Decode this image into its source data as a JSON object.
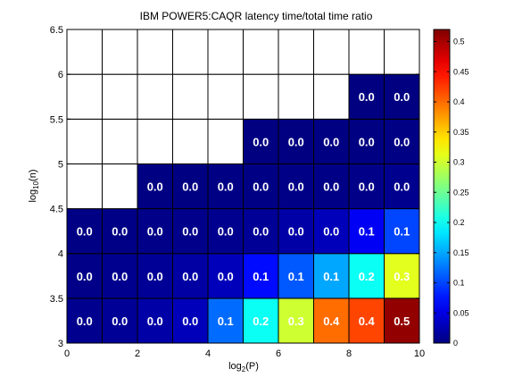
{
  "chart_data": {
    "type": "heatmap",
    "title": "IBM POWER5:CAQR latency time/total time ratio",
    "xlabel": "log2(P)",
    "xlabel_base": "log",
    "xlabel_sub": "2",
    "xlabel_arg": "(P)",
    "ylabel": "log10(n)",
    "ylabel_base": "log",
    "ylabel_sub": "10",
    "ylabel_arg": "(n)",
    "xlim": [
      0,
      10
    ],
    "ylim": [
      3,
      6.5
    ],
    "x_ticks": [
      "0",
      "2",
      "4",
      "6",
      "8",
      "10"
    ],
    "y_ticks": [
      "3",
      "3.5",
      "4",
      "4.5",
      "5",
      "5.5",
      "6",
      "6.5"
    ],
    "colorbar_range": [
      0,
      0.52
    ],
    "colorbar_ticks": [
      "0",
      "0.05",
      "0.1",
      "0.15",
      "0.2",
      "0.25",
      "0.3",
      "0.35",
      "0.4",
      "0.45",
      "0.5"
    ],
    "colormap": "jet",
    "x_categories": [
      0,
      1,
      2,
      3,
      4,
      5,
      6,
      7,
      8,
      9
    ],
    "rows": [
      {
        "y": 3,
        "values": [
          0.0,
          0.0,
          0.0,
          0.0,
          0.1,
          0.2,
          0.3,
          0.4,
          0.4,
          0.5
        ],
        "colors": [
          0.008,
          0.012,
          0.02,
          0.03,
          0.12,
          0.2,
          0.3,
          0.4,
          0.42,
          0.51
        ]
      },
      {
        "y": 3.5,
        "values": [
          0.0,
          0.0,
          0.0,
          0.0,
          0.0,
          0.1,
          0.1,
          0.1,
          0.2,
          0.3
        ],
        "colors": [
          0.005,
          0.008,
          0.012,
          0.018,
          0.03,
          0.07,
          0.11,
          0.15,
          0.2,
          0.31
        ]
      },
      {
        "y": 4,
        "values": [
          0.0,
          0.0,
          0.0,
          0.0,
          0.0,
          0.0,
          0.0,
          0.0,
          0.1,
          0.1
        ],
        "colors": [
          0.003,
          0.004,
          0.005,
          0.006,
          0.008,
          0.012,
          0.02,
          0.03,
          0.06,
          0.1
        ]
      },
      {
        "y": 4.5,
        "values": [
          null,
          null,
          0.0,
          0.0,
          0.0,
          0.0,
          0.0,
          0.0,
          0.0,
          0.0
        ],
        "colors": [
          null,
          null,
          0.002,
          0.002,
          0.003,
          0.003,
          0.004,
          0.004,
          0.005,
          0.008
        ]
      },
      {
        "y": 5,
        "values": [
          null,
          null,
          null,
          null,
          null,
          0.0,
          0.0,
          0.0,
          0.0,
          0.0
        ],
        "colors": [
          null,
          null,
          null,
          null,
          null,
          0.001,
          0.001,
          0.002,
          0.002,
          0.003
        ]
      },
      {
        "y": 5.5,
        "values": [
          null,
          null,
          null,
          null,
          null,
          null,
          null,
          null,
          0.0,
          0.0
        ],
        "colors": [
          null,
          null,
          null,
          null,
          null,
          null,
          null,
          null,
          0.001,
          0.001
        ]
      },
      {
        "y": 6,
        "values": [
          null,
          null,
          null,
          null,
          null,
          null,
          null,
          null,
          null,
          null
        ],
        "colors": [
          null,
          null,
          null,
          null,
          null,
          null,
          null,
          null,
          null,
          null
        ]
      }
    ]
  }
}
